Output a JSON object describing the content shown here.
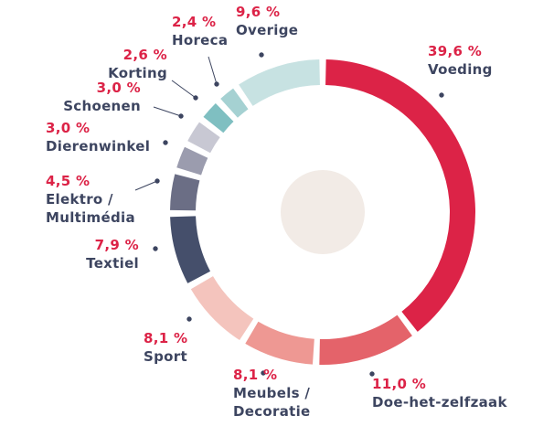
{
  "chart_data": {
    "type": "donut",
    "categories": [
      "Voeding",
      "Doe-het-zelfzaak",
      "Meubels / Decoratie",
      "Sport",
      "Textiel",
      "Elektro / Multimédia",
      "Dierenwinkel",
      "Schoenen",
      "Korting",
      "Horeca",
      "Overige"
    ],
    "values": [
      39.6,
      11.0,
      8.1,
      8.1,
      7.9,
      4.5,
      3.0,
      3.0,
      2.6,
      2.4,
      9.6
    ],
    "value_labels": [
      "39,6 %",
      "11,0 %",
      "8,1 %",
      "8,1 %",
      "7,9 %",
      "4,5 %",
      "3,0 %",
      "3,0 %",
      "2,6 %",
      "2,4 %",
      "9,6 %"
    ],
    "colors": [
      "#dc2347",
      "#e4636a",
      "#ee9893",
      "#f4c4bd",
      "#454f6b",
      "#6b6e85",
      "#9b9cae",
      "#c8c8d3",
      "#7fbfc1",
      "#a5d1d2",
      "#c7e2e2"
    ]
  }
}
